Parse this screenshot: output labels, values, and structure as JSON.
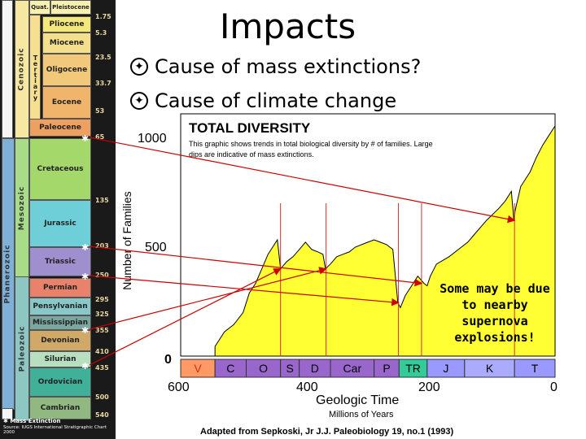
{
  "slide": {
    "title": "Impacts",
    "bullets": [
      "Cause of mass extinctions?",
      "Cause of climate change"
    ],
    "note": "Some may be due to nearby supernova explosions!"
  },
  "timescale": {
    "eons": [
      "Phanerozoic"
    ],
    "eras": [
      "Cenozoic",
      "Mesozoic",
      "Paleozoic"
    ],
    "cenozoic_subs": [
      {
        "label": "Quat.",
        "sub": "Pleistocene"
      },
      {
        "label": "Tertiary"
      }
    ],
    "periods": [
      {
        "name": "Pliocene",
        "age": "1.75",
        "color": "#f5e87a"
      },
      {
        "name": "Miocene",
        "age": "5.3",
        "color": "#f4e08c"
      },
      {
        "name": "Oligocene",
        "age": "23.5",
        "color": "#f2c97a"
      },
      {
        "name": "Eocene",
        "age": "33.7",
        "color": "#f0b56b"
      },
      {
        "name": "Paleocene",
        "age": "53",
        "color": "#eea060"
      },
      {
        "name": "Cretaceous",
        "age": "65",
        "color": "#a5d86a"
      },
      {
        "name": "Jurassic",
        "age": "135",
        "color": "#6fcfd8"
      },
      {
        "name": "Triassic",
        "age": "203",
        "color": "#9f8fcf"
      },
      {
        "name": "Permian",
        "age": "250",
        "color": "#e8826a"
      },
      {
        "name": "Pensylvanian",
        "age": "295",
        "color": "#88c8c8"
      },
      {
        "name": "Mississippian",
        "age": "325",
        "color": "#7aa8a0"
      },
      {
        "name": "Devonian",
        "age": "355",
        "color": "#d0a868"
      },
      {
        "name": "Silurian",
        "age": "410",
        "color": "#b8e0c0"
      },
      {
        "name": "Ordovician",
        "age": "435",
        "color": "#40b098"
      },
      {
        "name": "Cambrian",
        "age": "500",
        "color": "#90b880"
      }
    ],
    "bottom_age": "540",
    "legend": "Mass Extinction",
    "source": "Source: IUGS International Stratigraphic Chart 2000"
  },
  "chart_data": {
    "type": "area",
    "title": "TOTAL DIVERSITY",
    "subtitle": "This graphic shows trends in total biological diversity by # of families. Large dips are indicative of mass extinctions.",
    "ylabel": "Number of Families",
    "xlabel": "Geologic Time",
    "xsublabel": "Millions of Years",
    "credit": "Adapted from Sepkoski, Jr J.J. Paleobiology 19, no.1 (1993)",
    "xlim": [
      600,
      0
    ],
    "ylim": [
      0,
      1000
    ],
    "x_ticks": [
      "600",
      "400",
      "200",
      "0"
    ],
    "y_ticks": [
      "0",
      "500",
      "1000"
    ],
    "fill": "#ffff33",
    "periods": [
      "V",
      "C",
      "O",
      "S",
      "D",
      "Car",
      "P",
      "TR",
      "J",
      "K",
      "T"
    ],
    "x": [
      545,
      530,
      515,
      500,
      490,
      480,
      470,
      460,
      450,
      445,
      440,
      430,
      420,
      410,
      400,
      390,
      380,
      372,
      368,
      360,
      350,
      340,
      330,
      320,
      300,
      290,
      280,
      270,
      260,
      252,
      248,
      240,
      230,
      220,
      210,
      205,
      200,
      190,
      170,
      150,
      140,
      130,
      110,
      90,
      80,
      70,
      66,
      64,
      55,
      40,
      30,
      20,
      10,
      0
    ],
    "y": [
      40,
      100,
      130,
      180,
      260,
      300,
      360,
      420,
      460,
      480,
      360,
      390,
      410,
      440,
      470,
      440,
      430,
      420,
      360,
      380,
      410,
      420,
      430,
      450,
      470,
      480,
      470,
      460,
      440,
      220,
      200,
      250,
      290,
      330,
      300,
      290,
      330,
      380,
      410,
      450,
      470,
      500,
      560,
      610,
      640,
      680,
      560,
      600,
      700,
      760,
      820,
      870,
      910,
      950
    ],
    "impact_markers_x": [
      65,
      214,
      251,
      367,
      440
    ]
  }
}
